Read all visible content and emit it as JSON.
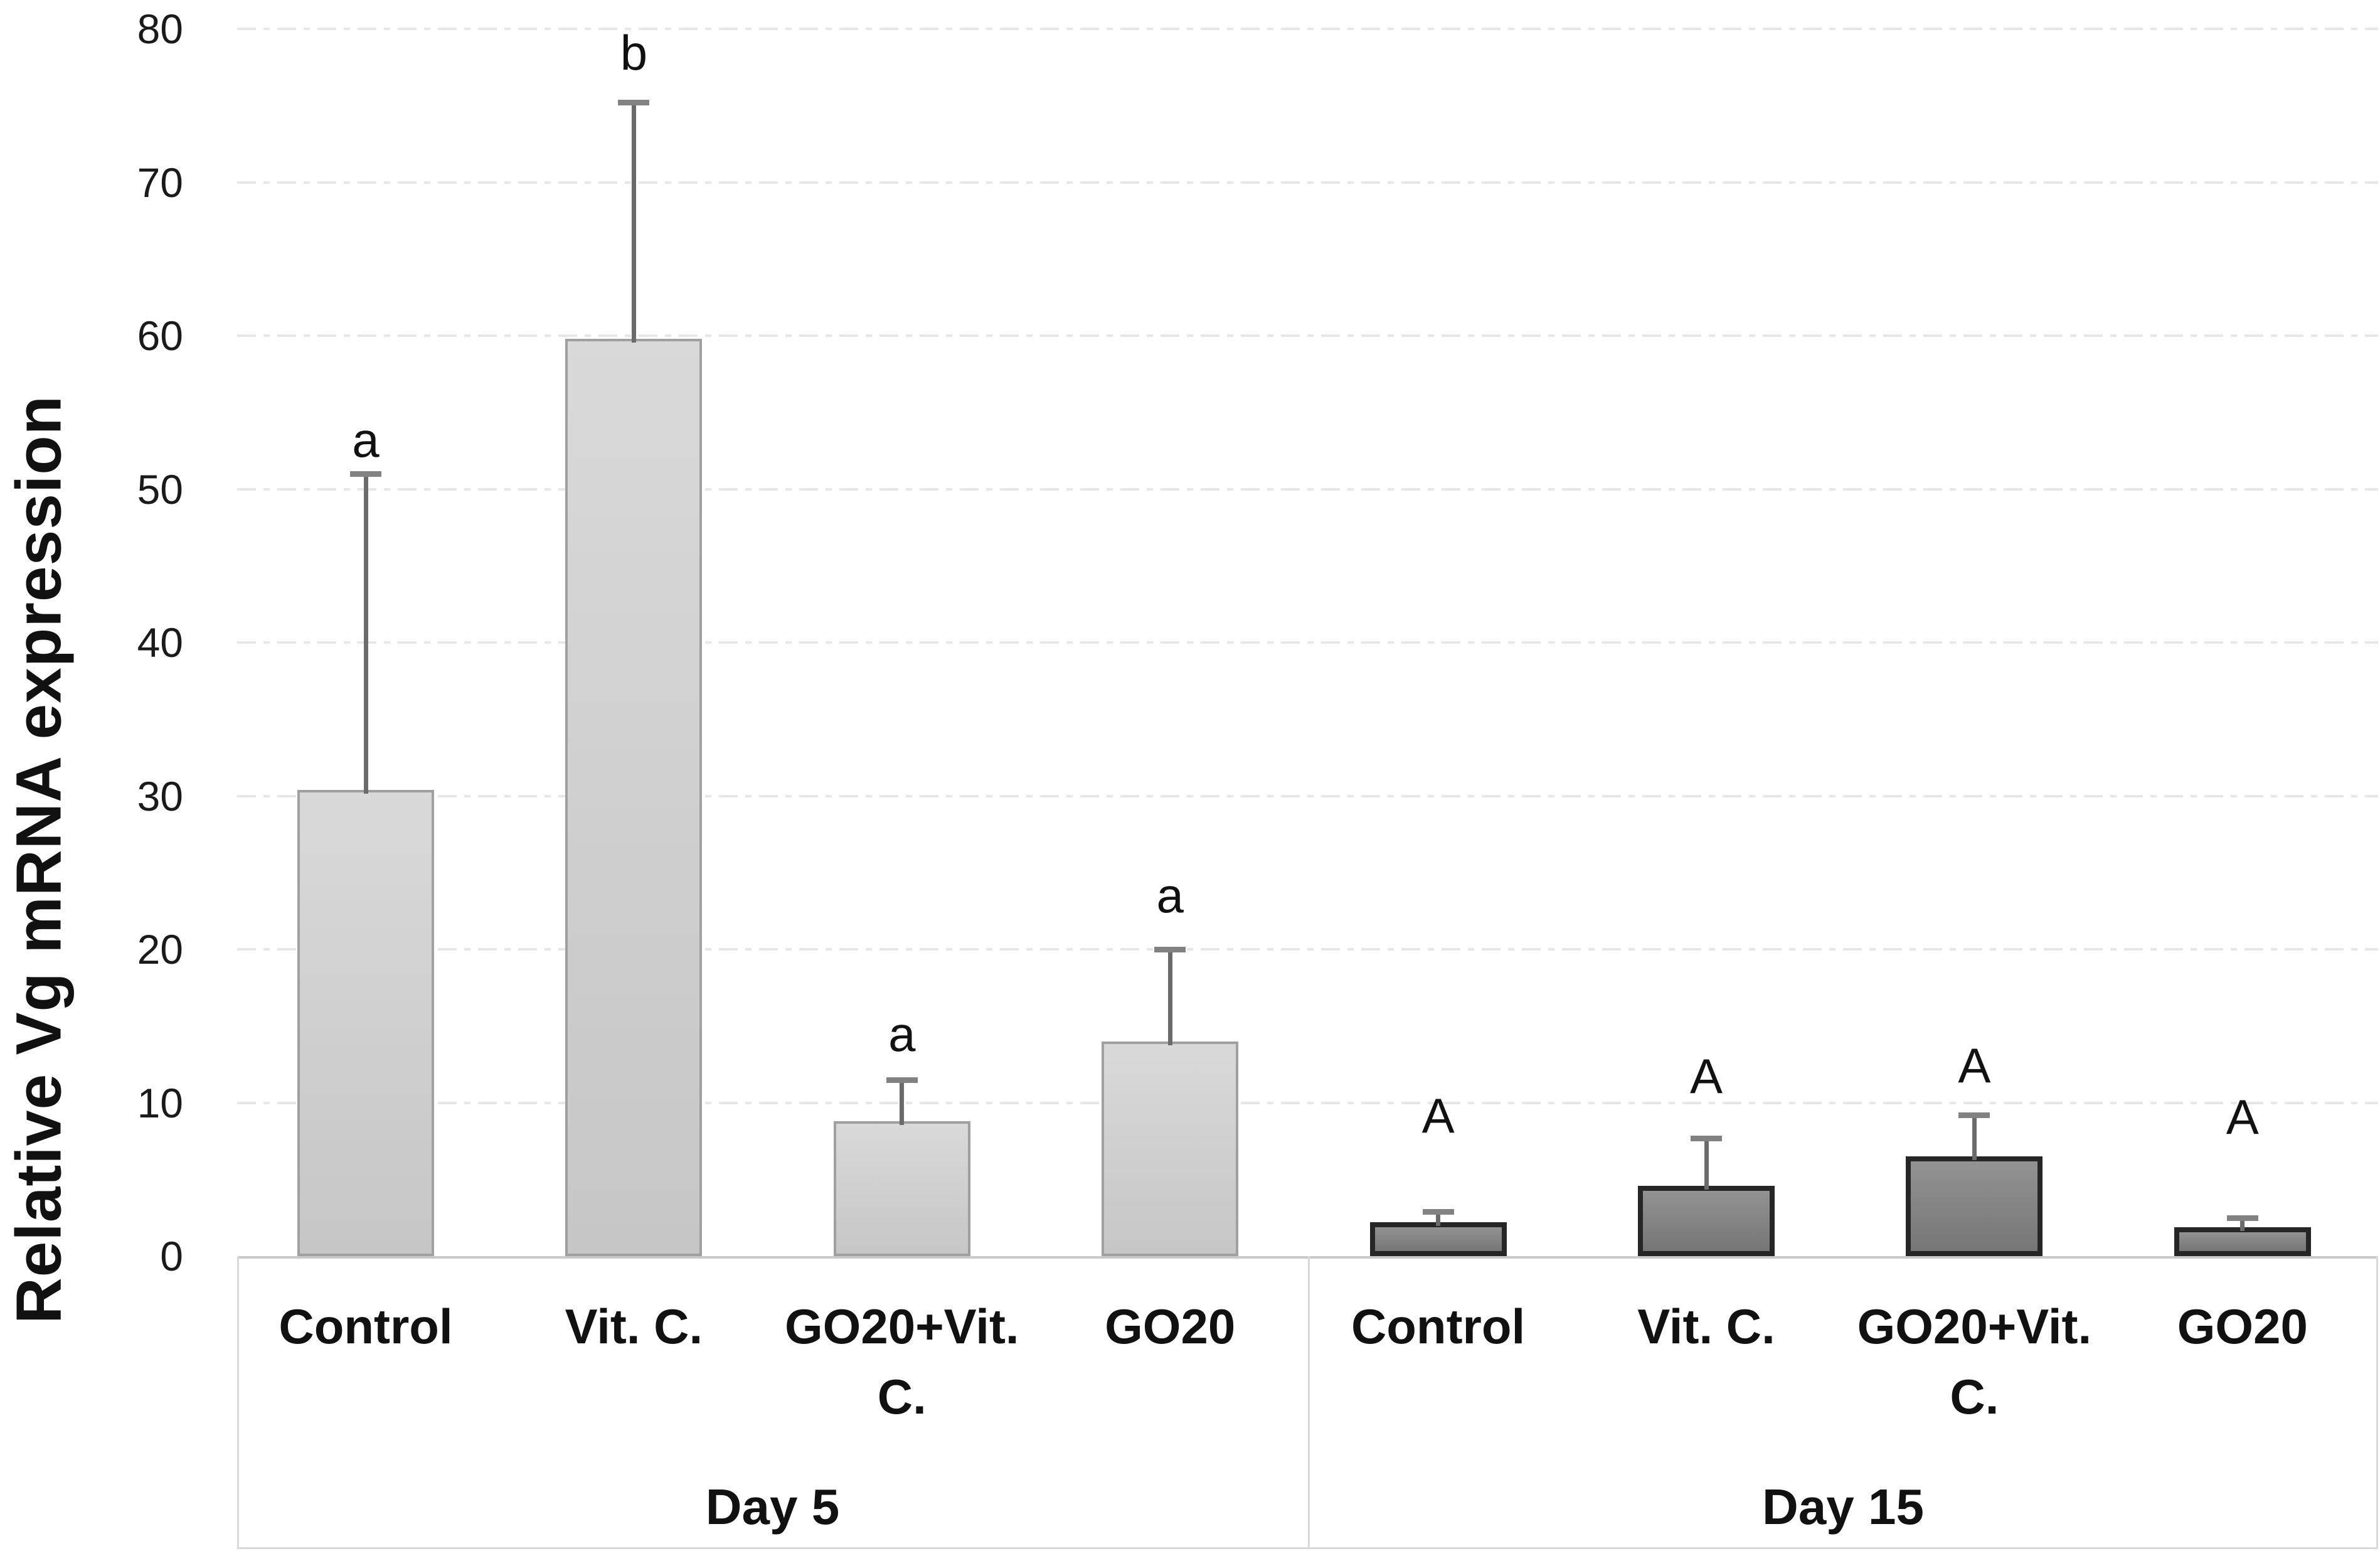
{
  "figure": {
    "background": "#ffffff",
    "description": "Grouped bar chart with upper SD error bars and significance letters"
  },
  "chart_data": {
    "type": "bar",
    "title": "",
    "xlabel": "",
    "ylabel": "Relative Vg mRNA expression",
    "ylim": [
      0,
      80
    ],
    "yticks": [
      0,
      10,
      20,
      30,
      40,
      50,
      60,
      70,
      80
    ],
    "grid": {
      "horizontal": true,
      "style": "dashed",
      "interval": 10
    },
    "legend": "none",
    "groups": [
      {
        "label": "Day 5",
        "bar_style": "light",
        "bars": [
          {
            "category": "Control",
            "value": 30.4,
            "error_up": 20.6,
            "sig_letter": "a"
          },
          {
            "category": "Vit. C.",
            "value": 59.8,
            "error_up": 15.4,
            "sig_letter": "b"
          },
          {
            "category": "GO20+Vit. C.",
            "value": 8.8,
            "error_up": 2.7,
            "sig_letter": "a"
          },
          {
            "category": "GO20",
            "value": 14.0,
            "error_up": 6.0,
            "sig_letter": "a"
          }
        ]
      },
      {
        "label": "Day 15",
        "bar_style": "dark",
        "bars": [
          {
            "category": "Control",
            "value": 2.2,
            "error_up": 0.7,
            "sig_letter": "A"
          },
          {
            "category": "Vit. C.",
            "value": 4.6,
            "error_up": 3.1,
            "sig_letter": "A"
          },
          {
            "category": "GO20+Vit. C.",
            "value": 6.5,
            "error_up": 2.7,
            "sig_letter": "A"
          },
          {
            "category": "GO20",
            "value": 1.9,
            "error_up": 0.6,
            "sig_letter": "A"
          }
        ]
      }
    ],
    "colors": {
      "bar_light_fill_top": "#d9d9d9",
      "bar_light_fill_bottom": "#c6c6c6",
      "bar_light_border": "#a0a0a0",
      "bar_dark_fill_top": "#929292",
      "bar_dark_fill_bottom": "#767676",
      "bar_dark_border": "#262626",
      "error_bar": "#6b6b6b",
      "error_cap": "#828282",
      "gridline": "#e7e7e7",
      "axis_table_border": "#d9d9d9",
      "text": "#111111"
    }
  }
}
